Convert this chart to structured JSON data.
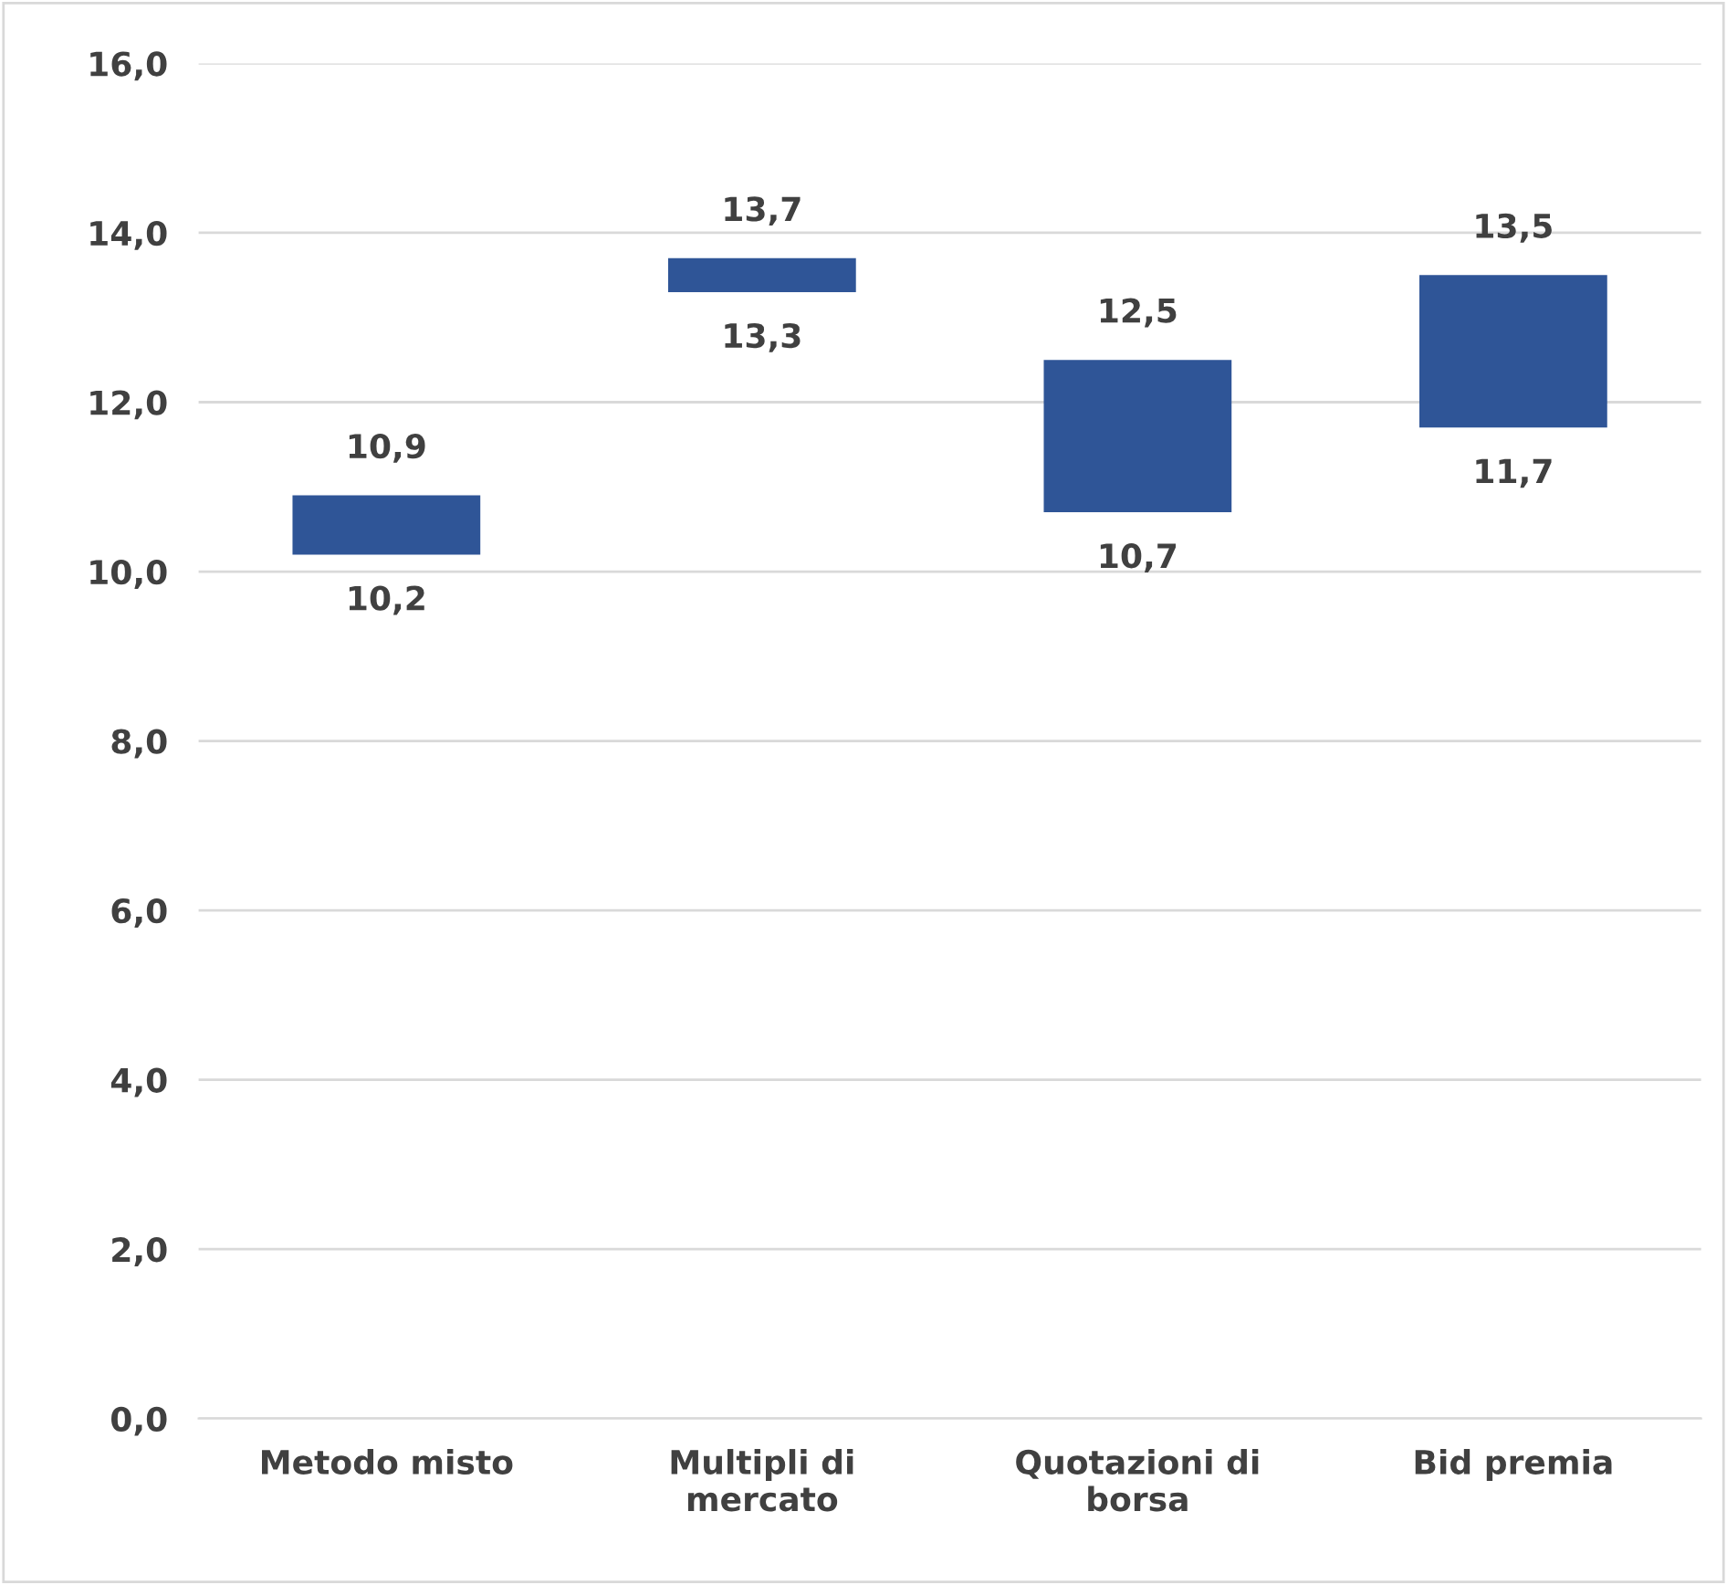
{
  "chart_data": {
    "type": "bar",
    "categories": [
      "Metodo misto",
      "Multipli di mercato",
      "Quotazioni di borsa",
      "Bid premia"
    ],
    "base": [
      10.2,
      13.3,
      10.7,
      11.7
    ],
    "values": [
      0.7,
      0.4,
      1.8,
      1.8
    ],
    "color": "#2f5597",
    "ylim": [
      0,
      16
    ],
    "yticks": [
      {
        "value": 0,
        "label": "0,0"
      },
      {
        "value": 2,
        "label": "2,0"
      },
      {
        "value": 4,
        "label": "4,0"
      },
      {
        "value": 6,
        "label": "6,0"
      },
      {
        "value": 8,
        "label": "8,0"
      },
      {
        "value": 10,
        "label": "10,0"
      },
      {
        "value": 12,
        "label": "12,0"
      },
      {
        "value": 14,
        "label": "14,0"
      },
      {
        "value": 16,
        "label": "16,0"
      }
    ],
    "grid": "y",
    "annotations": [
      {
        "text": "10,9",
        "x": "Metodo misto",
        "y": 10.9
      },
      {
        "text": "10,2",
        "x": "Metodo misto",
        "y": 10.2
      },
      {
        "text": "13,7",
        "x": "Multipli di mercato",
        "y": 13.7
      },
      {
        "text": "13,3",
        "x": "Multipli di mercato",
        "y": 13.3
      },
      {
        "text": "12,5",
        "x": "Quotazioni di borsa",
        "y": 12.5
      },
      {
        "text": "10,7",
        "x": "Quotazioni di borsa",
        "y": 10.7
      },
      {
        "text": "13,5",
        "x": "Bid premia",
        "y": 13.5
      },
      {
        "text": "11,7",
        "x": "Bid premia",
        "y": 11.7
      }
    ]
  }
}
